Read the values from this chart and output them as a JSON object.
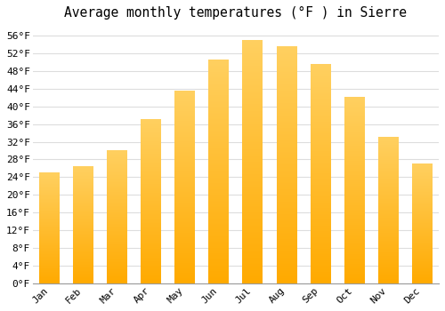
{
  "title": "Average monthly temperatures (°F ) in Sierre",
  "months": [
    "Jan",
    "Feb",
    "Mar",
    "Apr",
    "May",
    "Jun",
    "Jul",
    "Aug",
    "Sep",
    "Oct",
    "Nov",
    "Dec"
  ],
  "values": [
    25.0,
    26.5,
    30.0,
    37.0,
    43.5,
    50.5,
    55.0,
    53.5,
    49.5,
    42.0,
    33.0,
    27.0
  ],
  "bar_color_top": "#FFD060",
  "bar_color_bottom": "#FFAA00",
  "ylim": [
    0,
    58
  ],
  "ytick_step": 4,
  "background_color": "#ffffff",
  "grid_color": "#dddddd",
  "title_fontsize": 10.5,
  "tick_fontsize": 8
}
